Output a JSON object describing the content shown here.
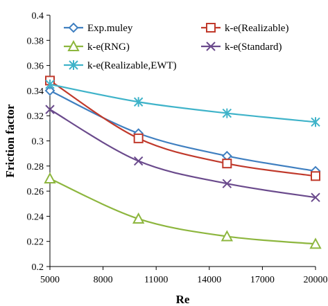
{
  "chart_data": {
    "type": "line",
    "xlabel": "Re",
    "ylabel": "Friction factor",
    "xlim": [
      5000,
      20000
    ],
    "ylim": [
      0.2,
      0.4
    ],
    "xticks": [
      5000,
      8000,
      11000,
      14000,
      17000,
      20000
    ],
    "yticks": [
      0.2,
      0.22,
      0.24,
      0.26,
      0.28,
      0.3,
      0.32,
      0.34,
      0.36,
      0.38,
      0.4
    ],
    "ytick_labels": [
      "0.2",
      "0.22",
      "0.24",
      "0.26",
      "0.28",
      "0.3",
      "0.32",
      "0.34",
      "0.36",
      "0.38",
      "0.4"
    ],
    "grid": false,
    "legend_position": "top",
    "smooth": true,
    "series": [
      {
        "name": "Exp.muley",
        "marker": "diamond",
        "color": "#3f7fc0",
        "x": [
          5000,
          10000,
          15000,
          20000
        ],
        "values": [
          0.34,
          0.306,
          0.288,
          0.276
        ]
      },
      {
        "name": "k-e(Realizable)",
        "marker": "square",
        "color": "#c0392b",
        "x": [
          5000,
          10000,
          15000,
          20000
        ],
        "values": [
          0.348,
          0.302,
          0.282,
          0.272
        ]
      },
      {
        "name": "k-e(RNG)",
        "marker": "triangle",
        "color": "#8db63e",
        "x": [
          5000,
          10000,
          15000,
          20000
        ],
        "values": [
          0.27,
          0.238,
          0.224,
          0.218
        ]
      },
      {
        "name": "k-e(Standard)",
        "marker": "x",
        "color": "#6a4a8c",
        "x": [
          5000,
          10000,
          15000,
          20000
        ],
        "values": [
          0.325,
          0.284,
          0.266,
          0.255
        ]
      },
      {
        "name": "k-e(Realizable,EWT)",
        "marker": "star",
        "color": "#3fb3c9",
        "x": [
          5000,
          10000,
          15000,
          20000
        ],
        "values": [
          0.345,
          0.331,
          0.322,
          0.315
        ]
      }
    ]
  }
}
